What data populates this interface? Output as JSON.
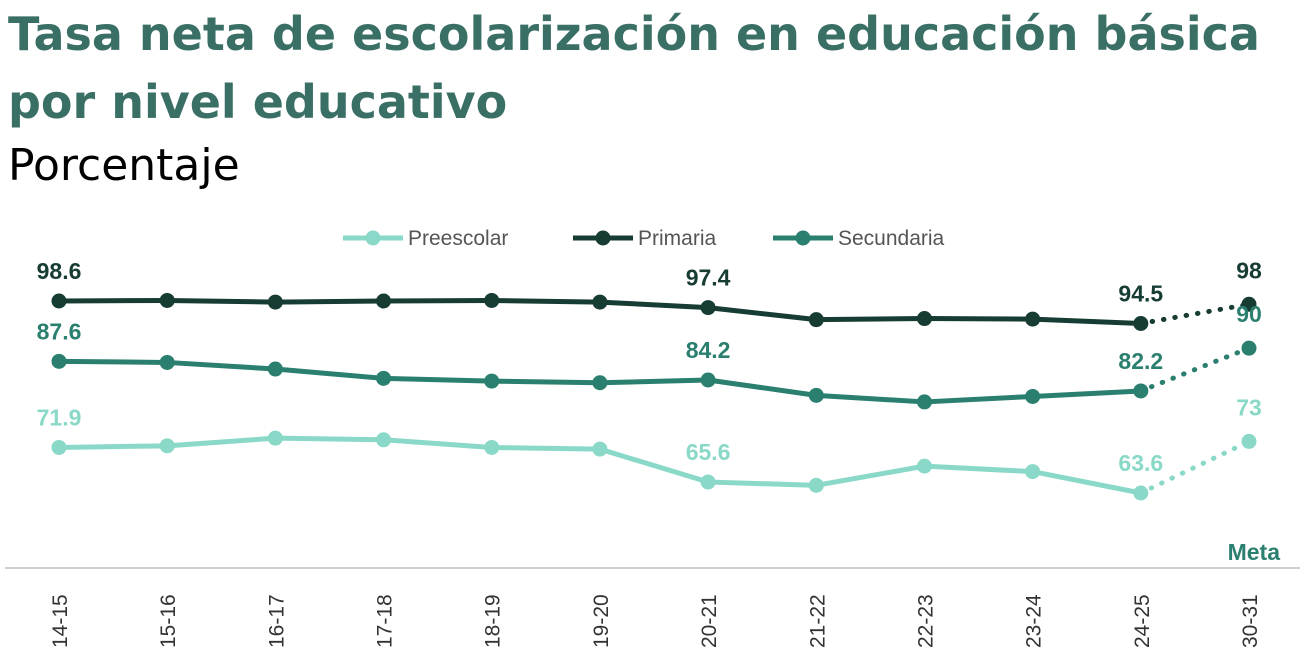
{
  "header": {
    "title": "Tasa neta de escolarización en educación básica por nivel educativo",
    "subtitle": "Porcentaje"
  },
  "chart_data": {
    "type": "line",
    "title": "Tasa neta de escolarización en educación básica por nivel educativo",
    "subtitle": "Porcentaje",
    "categories": [
      "14-15",
      "15-16",
      "16-17",
      "17-18",
      "18-19",
      "19-20",
      "20-21",
      "21-22",
      "22-23",
      "23-24",
      "24-25",
      "30-31"
    ],
    "goal_label": "Meta",
    "goal_category": "30-31",
    "legend_position": "top-center",
    "series": [
      {
        "name": "Preescolar",
        "color": "#8ad9c8",
        "values": [
          71.9,
          72.2,
          73.6,
          73.3,
          71.9,
          71.6,
          65.6,
          65.0,
          68.5,
          67.5,
          63.6,
          73
        ],
        "labels": {
          "0": "71.9",
          "6": "65.6",
          "10": "63.6",
          "11": "73"
        }
      },
      {
        "name": "Primaria",
        "color": "#163c33",
        "values": [
          98.6,
          98.7,
          98.4,
          98.6,
          98.7,
          98.4,
          97.4,
          95.2,
          95.4,
          95.3,
          94.5,
          98
        ],
        "labels": {
          "0": "98.6",
          "6": "97.4",
          "10": "94.5",
          "11": "98"
        }
      },
      {
        "name": "Secundaria",
        "color": "#2a7f6f",
        "values": [
          87.6,
          87.4,
          86.2,
          84.5,
          84.0,
          83.7,
          84.2,
          81.4,
          80.2,
          81.2,
          82.2,
          90
        ],
        "labels": {
          "0": "87.6",
          "6": "84.2",
          "10": "82.2",
          "11": "90"
        }
      }
    ],
    "projection_from_index": 10,
    "ylim": [
      55,
      105
    ]
  }
}
